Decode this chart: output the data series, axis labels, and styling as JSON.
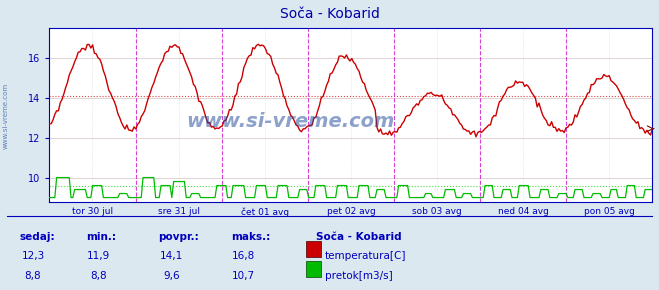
{
  "title": "Soča - Kobarid",
  "bg_color": "#dce8f0",
  "plot_bg_color": "#ffffff",
  "border_color": "#0000bb",
  "temp_color": "#cc0000",
  "flow_color": "#00bb00",
  "temp_avg": 14.1,
  "flow_avg": 9.6,
  "ylim_min": 8.8,
  "ylim_max": 17.5,
  "yticks": [
    10,
    12,
    14,
    16
  ],
  "n_points": 336,
  "days": [
    "tor 30 jul",
    "sre 31 jul",
    "čet 01 avg",
    "pet 02 avg",
    "sob 03 avg",
    "ned 04 avg",
    "pon 05 avg"
  ],
  "watermark": "www.si-vreme.com",
  "watermark_color": "#1a4499",
  "watermark_alpha": 0.5,
  "legend_title": "Soča - Kobarid",
  "legend_temp_label": "temperatura[C]",
  "legend_flow_label": "pretok[m3/s]",
  "table_headers": [
    "sedaj:",
    "min.:",
    "povpr.:",
    "maks.:"
  ],
  "table_temp": [
    "12,3",
    "11,9",
    "14,1",
    "16,8"
  ],
  "table_flow": [
    "8,8",
    "8,8",
    "9,6",
    "10,7"
  ],
  "vline_color": "#cc00cc",
  "grid_color": "#ddcccc",
  "text_color": "#0000bb",
  "title_color": "#0000aa",
  "axis_color": "#0000bb"
}
